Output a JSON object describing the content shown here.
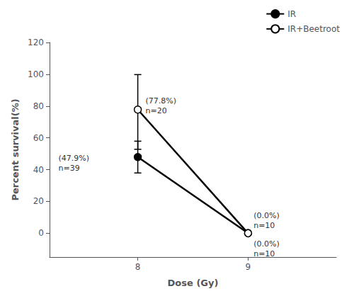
{
  "chart_data": {
    "type": "line",
    "xlabel": "Dose (Gy)",
    "ylabel": "Percent survival(%)",
    "series": [
      {
        "name": "IR",
        "color": "#000000",
        "marker": "circle",
        "x": [
          8,
          9
        ],
        "values": [
          47.9,
          0.0
        ],
        "error_low": [
          10,
          0
        ],
        "error_high": [
          10,
          0
        ]
      },
      {
        "name": "IR+Beetroot",
        "color": "#000000",
        "marker": "open_circle",
        "x": [
          8,
          9
        ],
        "values": [
          77.8,
          0.0
        ],
        "error_low": [
          25,
          0
        ],
        "error_high": [
          22,
          0
        ]
      }
    ],
    "xlim": [
      7.2,
      9.8
    ],
    "xticks": [
      8,
      9
    ],
    "ylim": [
      -15,
      120
    ],
    "yticks": [
      0,
      20,
      40,
      60,
      80,
      100,
      120
    ],
    "grid": false,
    "legend": "upper right",
    "annotations": [
      {
        "text": "(47.9%)\nn=39",
        "x": 7.28,
        "y": 44
      },
      {
        "text": "(77.8%)\nn=20",
        "x": 8.07,
        "y": 80
      },
      {
        "text": "(0.0%)\nn=10",
        "x": 9.05,
        "y": -10
      },
      {
        "text": "(0.0%)\nn=10",
        "x": 9.05,
        "y": 8
      }
    ]
  }
}
